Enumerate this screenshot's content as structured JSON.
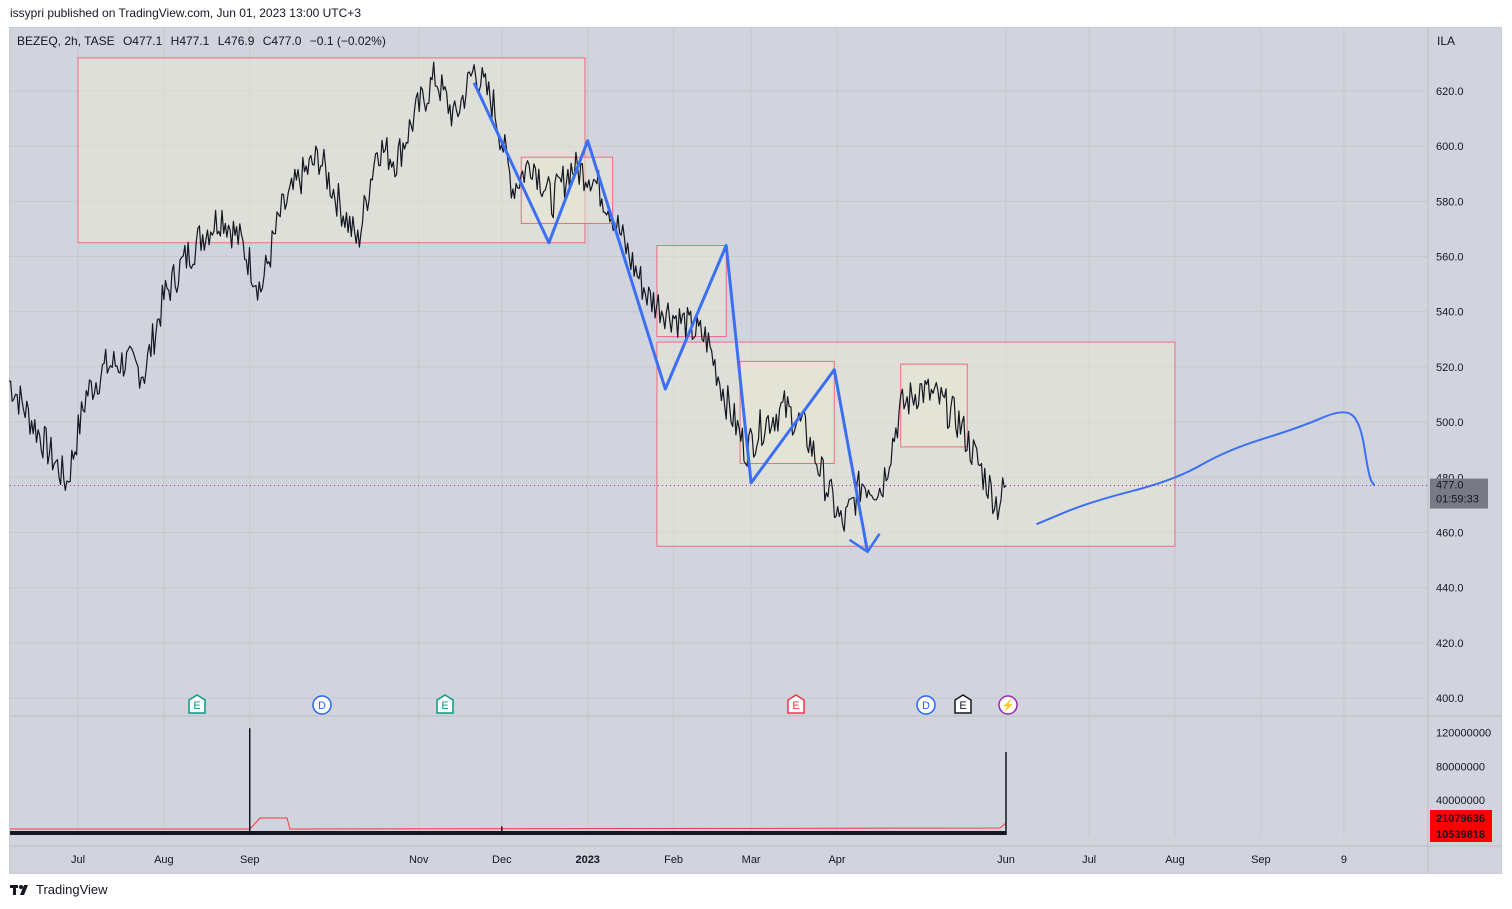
{
  "publisher_line": "issypri published on TradingView.com, Jun 01, 2023 13:00 UTC+3",
  "footer_brand": "TradingView",
  "header": {
    "symbol": "BEZEQ, 2h, TASE",
    "open": "O477.1",
    "high": "H477.1",
    "low": "L476.9",
    "close": "C477.0",
    "change": "−0.1 (−0.02%)",
    "currency": "ILA"
  },
  "price_axis": {
    "ticks": [
      "620.0",
      "600.0",
      "580.0",
      "560.0",
      "540.0",
      "520.0",
      "500.0",
      "480.0",
      "460.0",
      "440.0",
      "420.0",
      "400.0"
    ],
    "current_price_label": "477.0",
    "countdown_label": "01:59:33"
  },
  "volume_axis": {
    "ticks": [
      "120000000",
      "80000000",
      "40000000"
    ],
    "volume_label": "21079636",
    "volume_ma_label": "10539818"
  },
  "time_axis": {
    "labels": [
      "Jul",
      "Aug",
      "Sep",
      "Nov",
      "Dec",
      "2023",
      "Feb",
      "Mar",
      "Apr",
      "Jun",
      "Jul",
      "Aug",
      "Sep",
      "9"
    ],
    "bold_label": "2023"
  },
  "event_markers": [
    {
      "letter": "E",
      "kind": "earnings",
      "color": "#089981"
    },
    {
      "letter": "D",
      "kind": "dividend",
      "color": "#2962ff"
    },
    {
      "letter": "E",
      "kind": "earnings",
      "color": "#089981"
    },
    {
      "letter": "E",
      "kind": "earnings",
      "color": "#f23645"
    },
    {
      "letter": "D",
      "kind": "dividend",
      "color": "#2962ff"
    },
    {
      "letter": "E",
      "kind": "earnings",
      "color": "#131722"
    },
    {
      "letter": "⚡",
      "kind": "split",
      "color": "#9c27b0"
    }
  ],
  "colors": {
    "background": "#d1d4dc",
    "candles": "#131722",
    "rect_fill": "#e9e8d6",
    "rect_border": "#f06a82",
    "drawn_line": "#3b6ff5",
    "price_badge": "#787b86",
    "volume_badge": "#ff0000"
  },
  "chart_data": {
    "type": "line",
    "symbol": "BEZEQ",
    "interval": "2h",
    "exchange": "TASE",
    "ylim": [
      392,
      640
    ],
    "grid": true,
    "series": [
      {
        "values": [
          {
            "x": "2022-06-20",
            "y": 515
          },
          {
            "x": "2022-06-23",
            "y": 485
          },
          {
            "x": "2022-06-27",
            "y": 478
          },
          {
            "x": "2022-07-04",
            "y": 510
          },
          {
            "x": "2022-07-11",
            "y": 520
          },
          {
            "x": "2022-07-18",
            "y": 522
          },
          {
            "x": "2022-07-25",
            "y": 518
          },
          {
            "x": "2022-08-01",
            "y": 545
          },
          {
            "x": "2022-08-08",
            "y": 558
          },
          {
            "x": "2022-08-15",
            "y": 568
          },
          {
            "x": "2022-08-22",
            "y": 575
          },
          {
            "x": "2022-08-29",
            "y": 565
          },
          {
            "x": "2022-09-05",
            "y": 548
          },
          {
            "x": "2022-09-12",
            "y": 575
          },
          {
            "x": "2022-09-19",
            "y": 588
          },
          {
            "x": "2022-09-26",
            "y": 596
          },
          {
            "x": "2022-10-03",
            "y": 580
          },
          {
            "x": "2022-10-10",
            "y": 565
          },
          {
            "x": "2022-10-17",
            "y": 600
          },
          {
            "x": "2022-10-24",
            "y": 595
          },
          {
            "x": "2022-10-31",
            "y": 612
          },
          {
            "x": "2022-11-07",
            "y": 625
          },
          {
            "x": "2022-11-14",
            "y": 610
          },
          {
            "x": "2022-11-21",
            "y": 628
          },
          {
            "x": "2022-11-28",
            "y": 615
          },
          {
            "x": "2022-12-05",
            "y": 585
          },
          {
            "x": "2022-12-12",
            "y": 595
          },
          {
            "x": "2022-12-19",
            "y": 580
          },
          {
            "x": "2022-12-26",
            "y": 592
          },
          {
            "x": "2023-01-02",
            "y": 590
          },
          {
            "x": "2023-01-09",
            "y": 578
          },
          {
            "x": "2023-01-16",
            "y": 560
          },
          {
            "x": "2023-01-23",
            "y": 545
          },
          {
            "x": "2023-01-30",
            "y": 540
          },
          {
            "x": "2023-02-06",
            "y": 535
          },
          {
            "x": "2023-02-13",
            "y": 530
          },
          {
            "x": "2023-02-20",
            "y": 508
          },
          {
            "x": "2023-02-27",
            "y": 490
          },
          {
            "x": "2023-03-06",
            "y": 500
          },
          {
            "x": "2023-03-13",
            "y": 505
          },
          {
            "x": "2023-03-20",
            "y": 498
          },
          {
            "x": "2023-03-27",
            "y": 480
          },
          {
            "x": "2023-04-03",
            "y": 462
          },
          {
            "x": "2023-04-10",
            "y": 478
          },
          {
            "x": "2023-04-17",
            "y": 476
          },
          {
            "x": "2023-04-24",
            "y": 505
          },
          {
            "x": "2023-05-01",
            "y": 512
          },
          {
            "x": "2023-05-08",
            "y": 508
          },
          {
            "x": "2023-05-15",
            "y": 500
          },
          {
            "x": "2023-05-22",
            "y": 485
          },
          {
            "x": "2023-05-29",
            "y": 470
          },
          {
            "x": "2023-06-01",
            "y": 477
          }
        ]
      }
    ],
    "last_price": 477.0,
    "annotations": {
      "rectangles": [
        {
          "x1": "2022-07-01",
          "x2": "2022-12-31",
          "y1": 565,
          "y2": 632
        },
        {
          "x1": "2022-12-08",
          "x2": "2023-01-10",
          "y1": 572,
          "y2": 596
        },
        {
          "x1": "2023-01-26",
          "x2": "2023-02-20",
          "y1": 531,
          "y2": 564
        },
        {
          "x1": "2023-01-26",
          "x2": "2023-08-01",
          "y1": 455,
          "y2": 529
        },
        {
          "x1": "2023-02-25",
          "x2": "2023-03-31",
          "y1": 485,
          "y2": 522
        },
        {
          "x1": "2023-04-24",
          "x2": "2023-05-18",
          "y1": 491,
          "y2": 521
        }
      ],
      "zigzag": [
        {
          "x": "2022-11-21",
          "y": 623
        },
        {
          "x": "2022-12-18",
          "y": 565
        },
        {
          "x": "2023-01-01",
          "y": 602
        },
        {
          "x": "2023-01-29",
          "y": 512
        },
        {
          "x": "2023-02-20",
          "y": 564
        },
        {
          "x": "2023-03-01",
          "y": 478
        },
        {
          "x": "2023-03-31",
          "y": 519
        },
        {
          "x": "2023-04-12",
          "y": 453
        }
      ],
      "projection": [
        {
          "x": "2023-06-12",
          "y": 463
        },
        {
          "x": "2023-07-01",
          "y": 471
        },
        {
          "x": "2023-08-01",
          "y": 479
        },
        {
          "x": "2023-08-20",
          "y": 490
        },
        {
          "x": "2023-09-15",
          "y": 498
        },
        {
          "x": "2023-10-01",
          "y": 505
        },
        {
          "x": "2023-10-07",
          "y": 500
        },
        {
          "x": "2023-10-10",
          "y": 480
        },
        {
          "x": "2023-10-12",
          "y": 477
        }
      ]
    },
    "volume": {
      "ylim": [
        0,
        130000000
      ],
      "spikes": [
        {
          "x": "2022-09-01",
          "y": 125000000
        },
        {
          "x": "2022-12-01",
          "y": 9000000
        },
        {
          "x": "2023-06-01",
          "y": 97000000
        }
      ],
      "last_volume": 21079636,
      "last_volume_ma": 10539818
    }
  }
}
